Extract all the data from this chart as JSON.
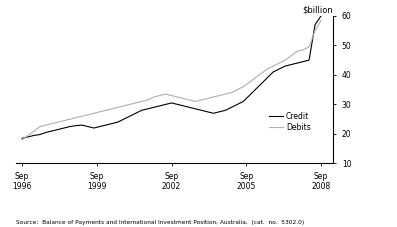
{
  "source_text": "Source:  Balance of Payments and International Investment Position, Australia,  (cat.  no.  5302.0)",
  "ylim": [
    10,
    60
  ],
  "yticks": [
    10,
    20,
    30,
    40,
    50,
    60
  ],
  "ylabel": "$billion",
  "credit_color": "#000000",
  "debits_color": "#b0b0b0",
  "legend_labels": [
    "Credit",
    "Debits"
  ],
  "xtick_labels": [
    "Sep\n1996",
    "Sep\n1999",
    "Sep\n2002",
    "Sep\n2005",
    "Sep\n2008"
  ],
  "xtick_positions": [
    0,
    12,
    24,
    36,
    48
  ],
  "xlim": [
    -1,
    50
  ],
  "credit": [
    18.5,
    19.0,
    19.5,
    19.8,
    20.5,
    21.0,
    21.5,
    22.0,
    22.5,
    22.8,
    23.0,
    22.5,
    22.0,
    22.5,
    23.0,
    23.5,
    24.0,
    25.0,
    26.0,
    27.0,
    28.0,
    28.5,
    29.0,
    29.5,
    30.0,
    30.5,
    30.0,
    29.5,
    29.0,
    28.5,
    28.0,
    27.5,
    27.0,
    27.5,
    28.0,
    29.0,
    30.0,
    31.0,
    33.0,
    35.0,
    37.0,
    39.0,
    41.0,
    42.0,
    43.0,
    43.5,
    44.0,
    44.5,
    45.0,
    57.0,
    60.0
  ],
  "debits": [
    18.0,
    19.5,
    21.0,
    22.5,
    23.0,
    23.5,
    24.0,
    24.5,
    25.0,
    25.5,
    26.0,
    26.5,
    27.0,
    27.5,
    28.0,
    28.5,
    29.0,
    29.5,
    30.0,
    30.5,
    31.0,
    31.5,
    32.5,
    33.0,
    33.5,
    33.0,
    32.5,
    32.0,
    31.5,
    31.0,
    31.5,
    32.0,
    32.5,
    33.0,
    33.5,
    34.0,
    35.0,
    36.0,
    37.5,
    39.0,
    40.5,
    42.0,
    43.0,
    44.0,
    45.0,
    46.5,
    48.0,
    48.5,
    49.5,
    55.0,
    58.5
  ]
}
